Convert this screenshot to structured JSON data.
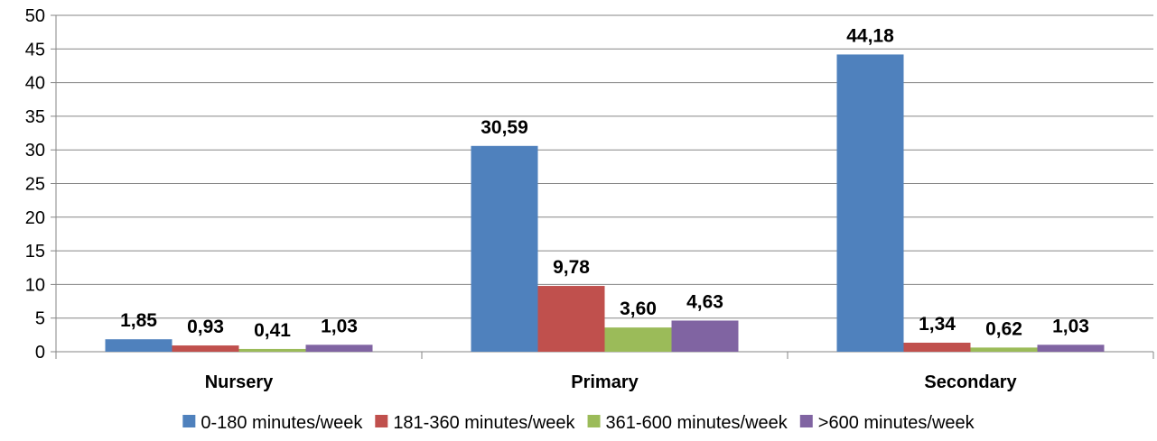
{
  "chart_data": {
    "type": "bar",
    "categories": [
      "Nursery",
      "Primary",
      "Secondary"
    ],
    "series": [
      {
        "name": "0-180 minutes/week",
        "values": [
          1.85,
          30.59,
          44.18
        ],
        "labels": [
          "1,85",
          "30,59",
          "44,18"
        ],
        "color": "#4F81BD"
      },
      {
        "name": "181-360 minutes/week",
        "values": [
          0.93,
          9.78,
          1.34
        ],
        "labels": [
          "0,93",
          "9,78",
          "1,34"
        ],
        "color": "#C0504D"
      },
      {
        "name": "361-600 minutes/week",
        "values": [
          0.41,
          3.6,
          0.62
        ],
        "labels": [
          "0,41",
          "3,60",
          "0,62"
        ],
        "color": "#9BBB59"
      },
      {
        "name": ">600 minutes/week",
        "values": [
          1.03,
          4.63,
          1.03
        ],
        "labels": [
          "1,03",
          "4,63",
          "1,03"
        ],
        "color": "#8064A2"
      }
    ],
    "title": "",
    "xlabel": "",
    "ylabel": "",
    "ylim": [
      0,
      50
    ],
    "yticks": [
      "0",
      "5",
      "10",
      "15",
      "20",
      "25",
      "30",
      "35",
      "40",
      "45",
      "50"
    ],
    "grid": true,
    "legend_position": "bottom"
  }
}
